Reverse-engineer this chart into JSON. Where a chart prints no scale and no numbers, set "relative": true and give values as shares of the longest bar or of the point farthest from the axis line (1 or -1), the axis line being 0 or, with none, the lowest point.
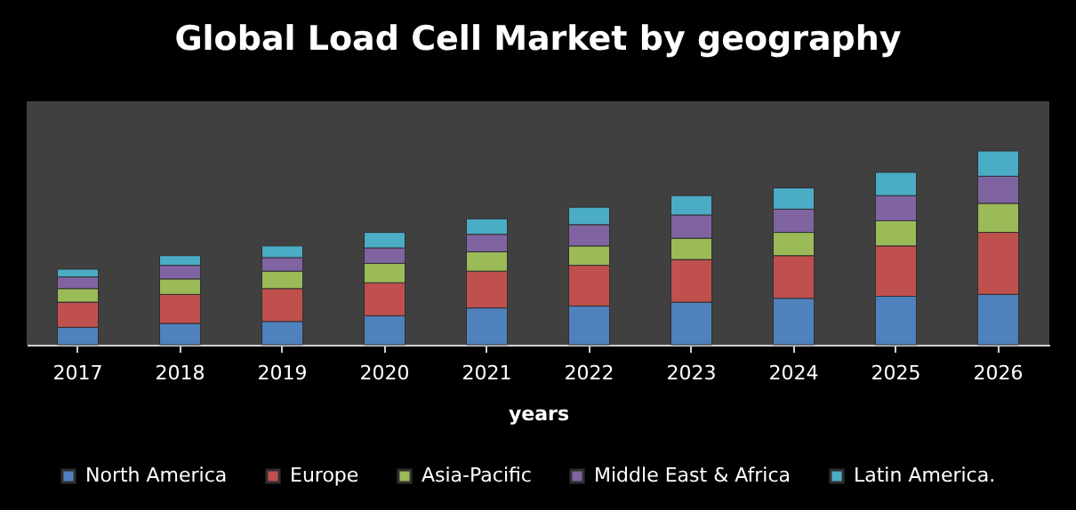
{
  "chart_data": {
    "type": "bar",
    "title": "Global Load Cell Market by geography",
    "xlabel": "years",
    "relative": true,
    "stacked": true,
    "legend": "bottom",
    "categories": [
      "2017",
      "2018",
      "2019",
      "2020",
      "2021",
      "2022",
      "2023",
      "2024",
      "2025",
      "2026"
    ],
    "series": [
      {
        "name": "North America",
        "color": "#4f81bd",
        "values": [
          0.09,
          0.11,
          0.12,
          0.15,
          0.19,
          0.2,
          0.22,
          0.24,
          0.25,
          0.26
        ]
      },
      {
        "name": "Europe",
        "color": "#c0504d",
        "values": [
          0.13,
          0.15,
          0.17,
          0.17,
          0.19,
          0.21,
          0.22,
          0.22,
          0.26,
          0.32
        ]
      },
      {
        "name": "Asia-Pacific",
        "color": "#9bbb59",
        "values": [
          0.07,
          0.08,
          0.09,
          0.1,
          0.1,
          0.1,
          0.11,
          0.12,
          0.13,
          0.15
        ]
      },
      {
        "name": "Middle East & Africa",
        "color": "#8064a2",
        "values": [
          0.06,
          0.07,
          0.07,
          0.08,
          0.09,
          0.11,
          0.12,
          0.12,
          0.13,
          0.14
        ]
      },
      {
        "name": "Latin America.",
        "color": "#4bacc6",
        "values": [
          0.04,
          0.05,
          0.06,
          0.08,
          0.08,
          0.09,
          0.1,
          0.11,
          0.12,
          0.13
        ]
      }
    ]
  }
}
